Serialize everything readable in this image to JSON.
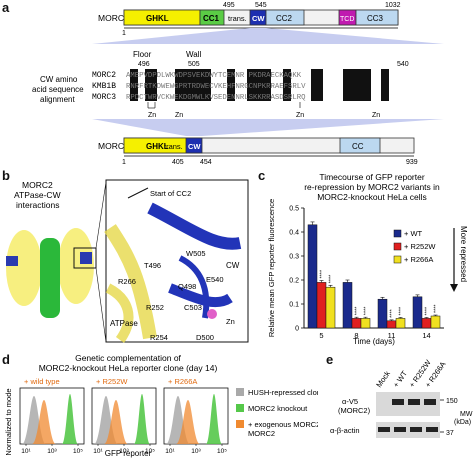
{
  "panel_a": {
    "letter": "a",
    "morc2": {
      "name": "MORC2",
      "start": "1",
      "cw_start": "495",
      "cw_end": "545",
      "end": "1032",
      "domains": [
        "GHKL",
        "CC1",
        "trans.",
        "CW",
        "CC2",
        "TCD",
        "CC3"
      ]
    },
    "floor_label": "Floor",
    "floor_pos": "496",
    "wall_label": "Wall",
    "wall_pos": "505",
    "align_end_pos": "540",
    "align_title": [
      "CW amino",
      "acid sequence",
      "alignment"
    ],
    "align_rows": [
      {
        "name": "MORC2",
        "seq": "AMEPVDPDLWKWDPSVEKDWYTCEMNR  PKDRAECKAQKK"
      },
      {
        "name": "KMB1B",
        "seq": "RNRFRTKDWEWGPRTRDWECVKEHFNRGCNPKRRAEFSRLV"
      },
      {
        "name": "MORC3",
        "seq": "RPDCTWRVCKWEKDGMWLKVSEDENNRLSKKRRASDSRLRQ"
      }
    ],
    "zn_labels": [
      "Zn",
      "Zn",
      "Zn",
      "Zn"
    ],
    "morc3": {
      "name": "MORC3",
      "start": "1",
      "cw_start": "405",
      "cw_end": "454",
      "end": "939",
      "domains": [
        "GHKL",
        "trans.",
        "CW",
        "CC"
      ]
    }
  },
  "panel_b": {
    "letter": "b",
    "title": [
      "MORC2",
      "ATPase-CW",
      "interactions"
    ],
    "labels": {
      "start_cc2": "Start of CC2",
      "w505": "W505",
      "t496": "T496",
      "cw": "CW",
      "r266": "R266",
      "e540": "E540",
      "q498": "Q498",
      "r252": "R252",
      "c503": "C503",
      "atpase": "ATPase",
      "zn": "Zn",
      "r254": "R254",
      "d500": "D500"
    }
  },
  "panel_c": {
    "letter": "c",
    "title": [
      "Timecourse of GFP reporter",
      "re-repression by MORC2 variants in",
      "MORC2-knockout HeLa cells"
    ],
    "more_repressed": "More repressed",
    "stars": "****"
  },
  "chart_data": {
    "type": "bar",
    "categories": [
      "5",
      "8",
      "11",
      "14"
    ],
    "series": [
      {
        "name": "+ WT",
        "color": "#1a2a8c",
        "values": [
          0.43,
          0.19,
          0.12,
          0.13
        ],
        "errors": [
          0.012,
          0.01,
          0.008,
          0.008
        ]
      },
      {
        "name": "+ R252W",
        "color": "#e02020",
        "values": [
          0.19,
          0.04,
          0.03,
          0.04
        ],
        "errors": [
          0.008,
          0.005,
          0.004,
          0.004
        ]
      },
      {
        "name": "+ R266A",
        "color": "#f0e020",
        "values": [
          0.17,
          0.04,
          0.04,
          0.05
        ],
        "errors": [
          0.008,
          0.005,
          0.004,
          0.004
        ]
      }
    ],
    "ylim": [
      0,
      0.5
    ],
    "yticks": [
      "0",
      "0.1",
      "0.2",
      "0.3",
      "0.4",
      "0.5"
    ],
    "xlabel": "Time (days)",
    "ylabel": "Relative mean GFP reporter fluorescence",
    "legend": "top-right"
  },
  "panel_d": {
    "letter": "d",
    "title": [
      "Genetic complementation of",
      "MORC2-knockout HeLa reporter clone (day 14)"
    ],
    "subpanels": [
      "+ wild type",
      "+ R252W",
      "+ R266A"
    ],
    "ylabel": [
      "Normalized to mode"
    ],
    "xlabel": "GFP reporter",
    "ticks": [
      "10¹",
      "10³",
      "10⁵"
    ],
    "legend": [
      {
        "label": "HUSH-repressed clone",
        "color": "#a9a9a9"
      },
      {
        "label": "MORC2 knockout",
        "color": "#55c84a"
      },
      {
        "label": "+ exogenous MORC2",
        "color": "#f08a30"
      }
    ],
    "legend_extra": "MORC2"
  },
  "panel_e": {
    "letter": "e",
    "lanes": [
      "Mock",
      "+ WT",
      "+ R252W",
      "+ R266A"
    ],
    "blot1_label": [
      "α-V5",
      "(MORC2)"
    ],
    "blot2_label": "α-β-actin",
    "mw_150": "150",
    "mw_37": "37",
    "mw_label": [
      "MW",
      "(kDa)"
    ]
  }
}
